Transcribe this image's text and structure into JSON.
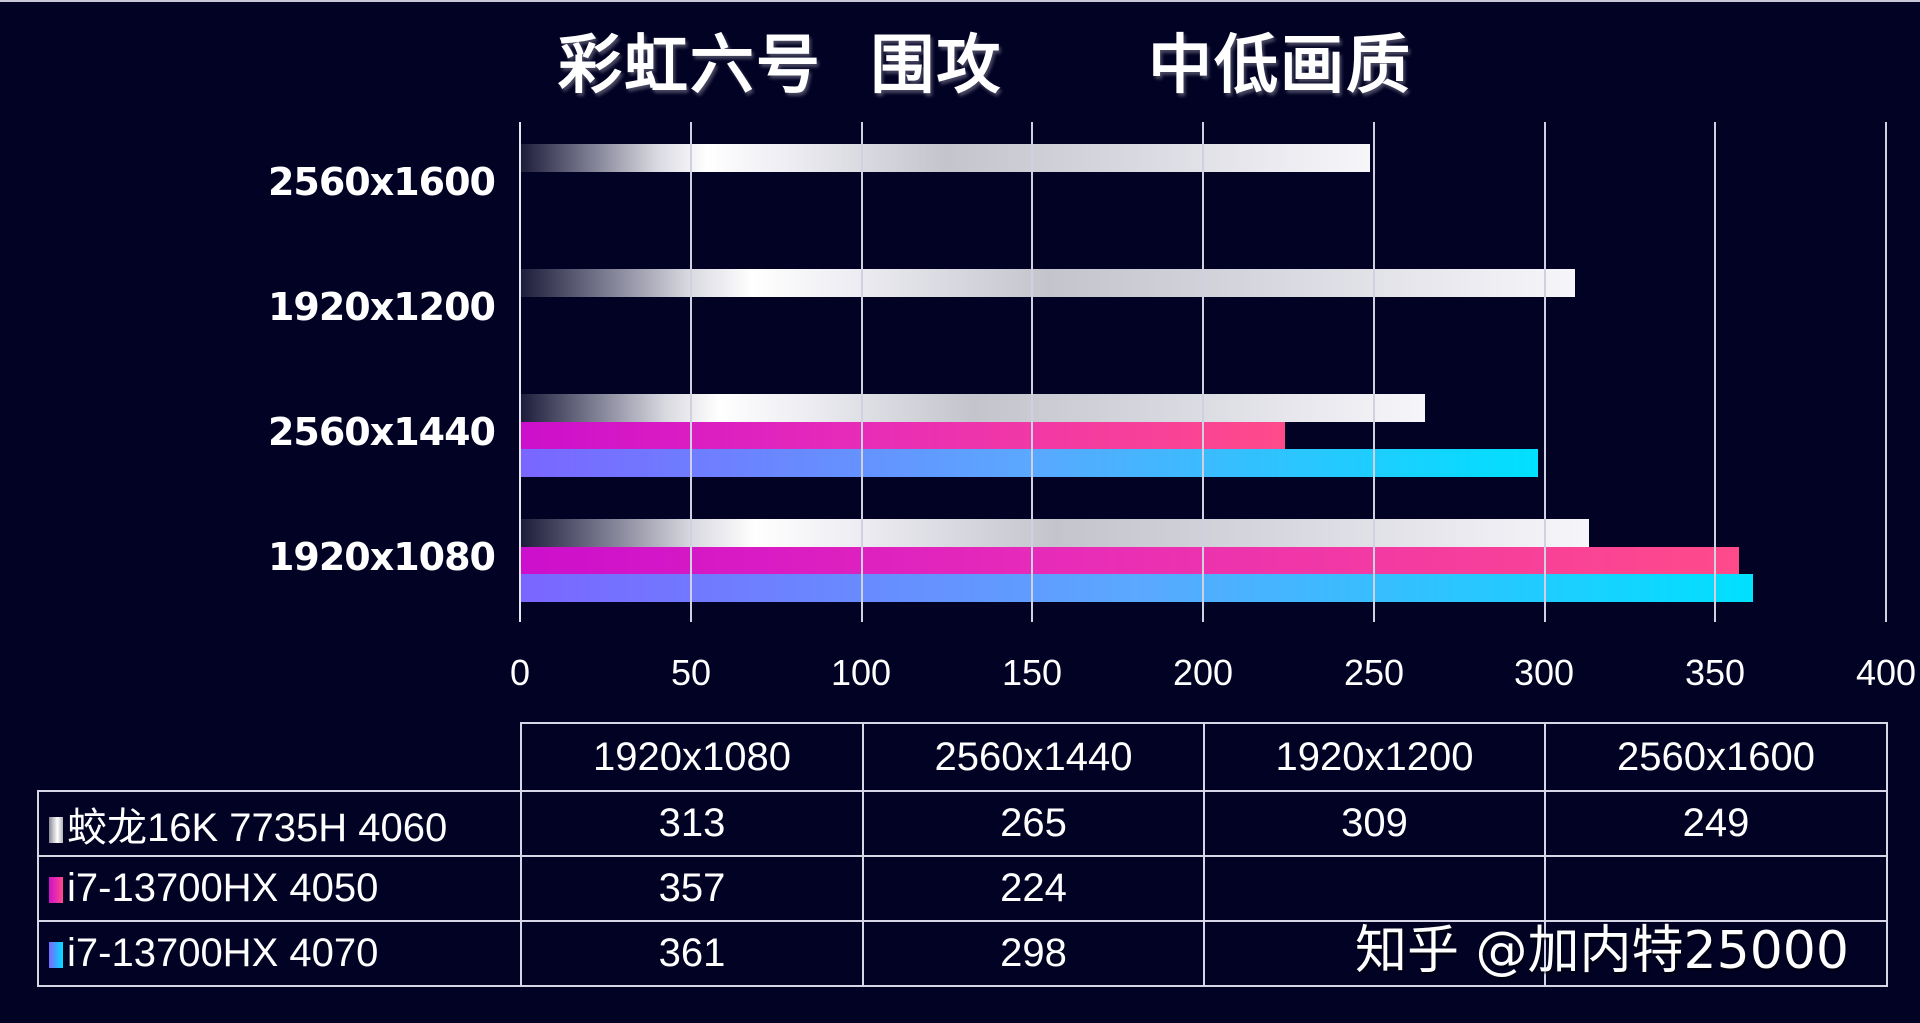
{
  "title": "彩虹六号  围攻      中低画质",
  "watermark": "知乎 @加内特25000",
  "colors": {
    "background": "#020224",
    "series_0": "#ffffff",
    "series_1_start": "#cc0fcc",
    "series_1_end": "#ff4a8a",
    "series_2_start": "#7a66ff",
    "series_2_end": "#00e0ff",
    "grid": "#d0d0e0"
  },
  "chart_data": {
    "type": "bar",
    "orientation": "horizontal",
    "title": "彩虹六号 围攻 中低画质",
    "xlabel": "",
    "ylabel": "",
    "xlim": [
      0,
      400
    ],
    "x_ticks": [
      "0",
      "50",
      "100",
      "150",
      "200",
      "250",
      "300",
      "350",
      "400"
    ],
    "grid": true,
    "legend_position": "data table below chart",
    "categories": [
      "1920x1080",
      "2560x1440",
      "1920x1200",
      "2560x1600"
    ],
    "series": [
      {
        "name": "蛟龙16K 7735H 4060",
        "values": [
          313,
          265,
          309,
          249
        ]
      },
      {
        "name": "i7-13700HX 4050",
        "values": [
          357,
          224,
          null,
          null
        ]
      },
      {
        "name": "i7-13700HX 4070",
        "values": [
          361,
          298,
          null,
          null
        ]
      }
    ]
  },
  "axis": {
    "category_labels_top_to_bottom": [
      "2560x1600",
      "1920x1200",
      "2560x1440",
      "1920x1080"
    ]
  },
  "table": {
    "headers": [
      "1920x1080",
      "2560x1440",
      "1920x1200",
      "2560x1600"
    ],
    "rows": [
      {
        "name": "蛟龙16K 7735H 4060",
        "cells": [
          "313",
          "265",
          "309",
          "249"
        ]
      },
      {
        "name": "i7-13700HX 4050",
        "cells": [
          "357",
          "224",
          "",
          ""
        ]
      },
      {
        "name": "i7-13700HX 4070",
        "cells": [
          "361",
          "298",
          "",
          ""
        ]
      }
    ]
  }
}
